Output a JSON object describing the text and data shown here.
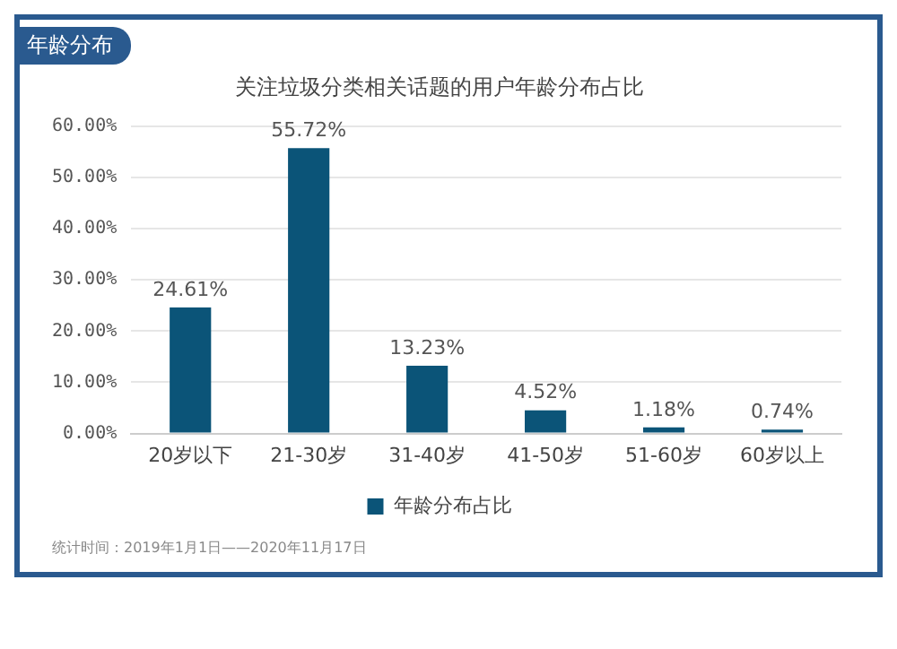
{
  "chart_data": {
    "type": "bar",
    "title": "年龄分布",
    "subtitle": "关注垃圾分类相关话题的用户年龄分布占比",
    "categories": [
      "20岁以下",
      "21-30岁",
      "31-40岁",
      "41-50岁",
      "51-60岁",
      "60岁以上"
    ],
    "series": [
      {
        "name": "年龄分布占比",
        "color": "#0b5478",
        "values": [
          24.61,
          55.72,
          13.23,
          4.52,
          1.18,
          0.74
        ],
        "value_labels": [
          "24.61%",
          "55.72%",
          "13.23%",
          "4.52%",
          "1.18%",
          "0.74%"
        ]
      }
    ],
    "ylim": [
      0,
      60
    ],
    "yticks": [
      {
        "value": 0,
        "label": "0.00%"
      },
      {
        "value": 10,
        "label": "10.00%"
      },
      {
        "value": 20,
        "label": "20.00%"
      },
      {
        "value": 30,
        "label": "30.00%"
      },
      {
        "value": 40,
        "label": "40.00%"
      },
      {
        "value": 50,
        "label": "50.00%"
      },
      {
        "value": 60,
        "label": "60.00%"
      }
    ],
    "grid": "y",
    "legend": "bottom",
    "annotations": [
      "统计时间：2019年1月1日——2020年11月17日"
    ]
  }
}
